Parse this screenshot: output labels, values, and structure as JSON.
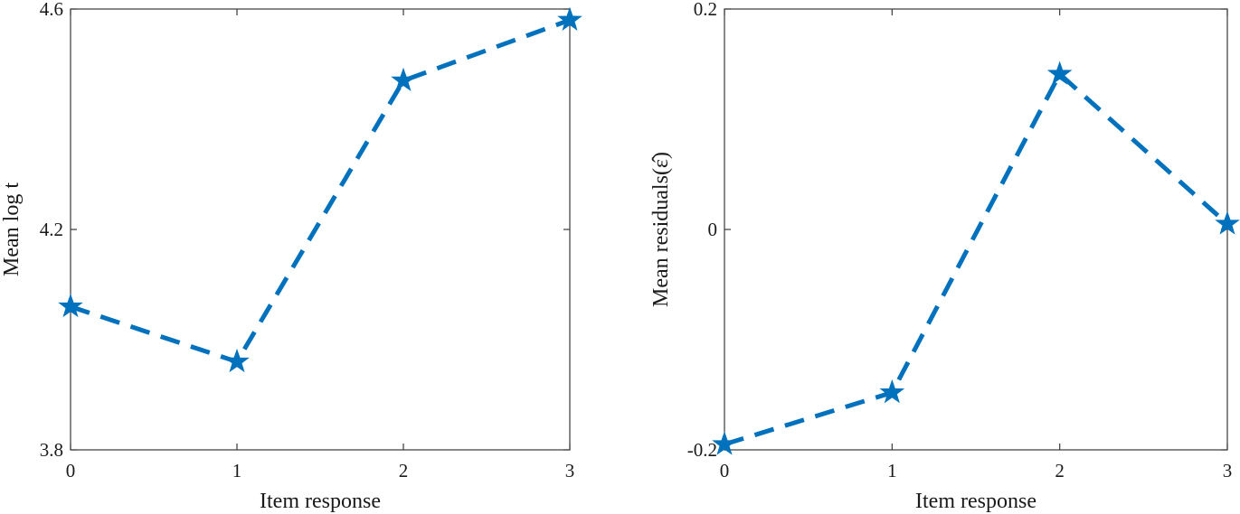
{
  "chart_data": [
    {
      "type": "line",
      "x": [
        0,
        1,
        2,
        3
      ],
      "series": [
        {
          "values": [
            4.06,
            3.96,
            4.47,
            4.58
          ],
          "color": "#0072BD",
          "line_style": "dashed",
          "marker": "star"
        }
      ],
      "xlabel": "Item response",
      "ylabel": "Mean log t",
      "xlim": [
        0,
        3
      ],
      "ylim": [
        3.8,
        4.6
      ],
      "xticks": [
        0,
        1,
        2,
        3
      ],
      "yticks": [
        3.8,
        4.2,
        4.6
      ],
      "xtick_labels": [
        "0",
        "1",
        "2",
        "3"
      ],
      "ytick_labels": [
        "3.8",
        "4.2",
        "4.6"
      ],
      "grid": false,
      "box": true
    },
    {
      "type": "line",
      "x": [
        0,
        1,
        2,
        3
      ],
      "series": [
        {
          "values": [
            -0.195,
            -0.148,
            0.141,
            0.005
          ],
          "color": "#0072BD",
          "line_style": "dashed",
          "marker": "star"
        }
      ],
      "xlabel": "Item response",
      "ylabel": "Mean residuals(ε̂)",
      "xlim": [
        0,
        3
      ],
      "ylim": [
        -0.2,
        0.2
      ],
      "xticks": [
        0,
        1,
        2,
        3
      ],
      "yticks": [
        -0.2,
        0,
        0.2
      ],
      "xtick_labels": [
        "0",
        "1",
        "2",
        "3"
      ],
      "ytick_labels": [
        "-0.2",
        "0",
        "0.2"
      ],
      "grid": false,
      "box": true
    }
  ]
}
